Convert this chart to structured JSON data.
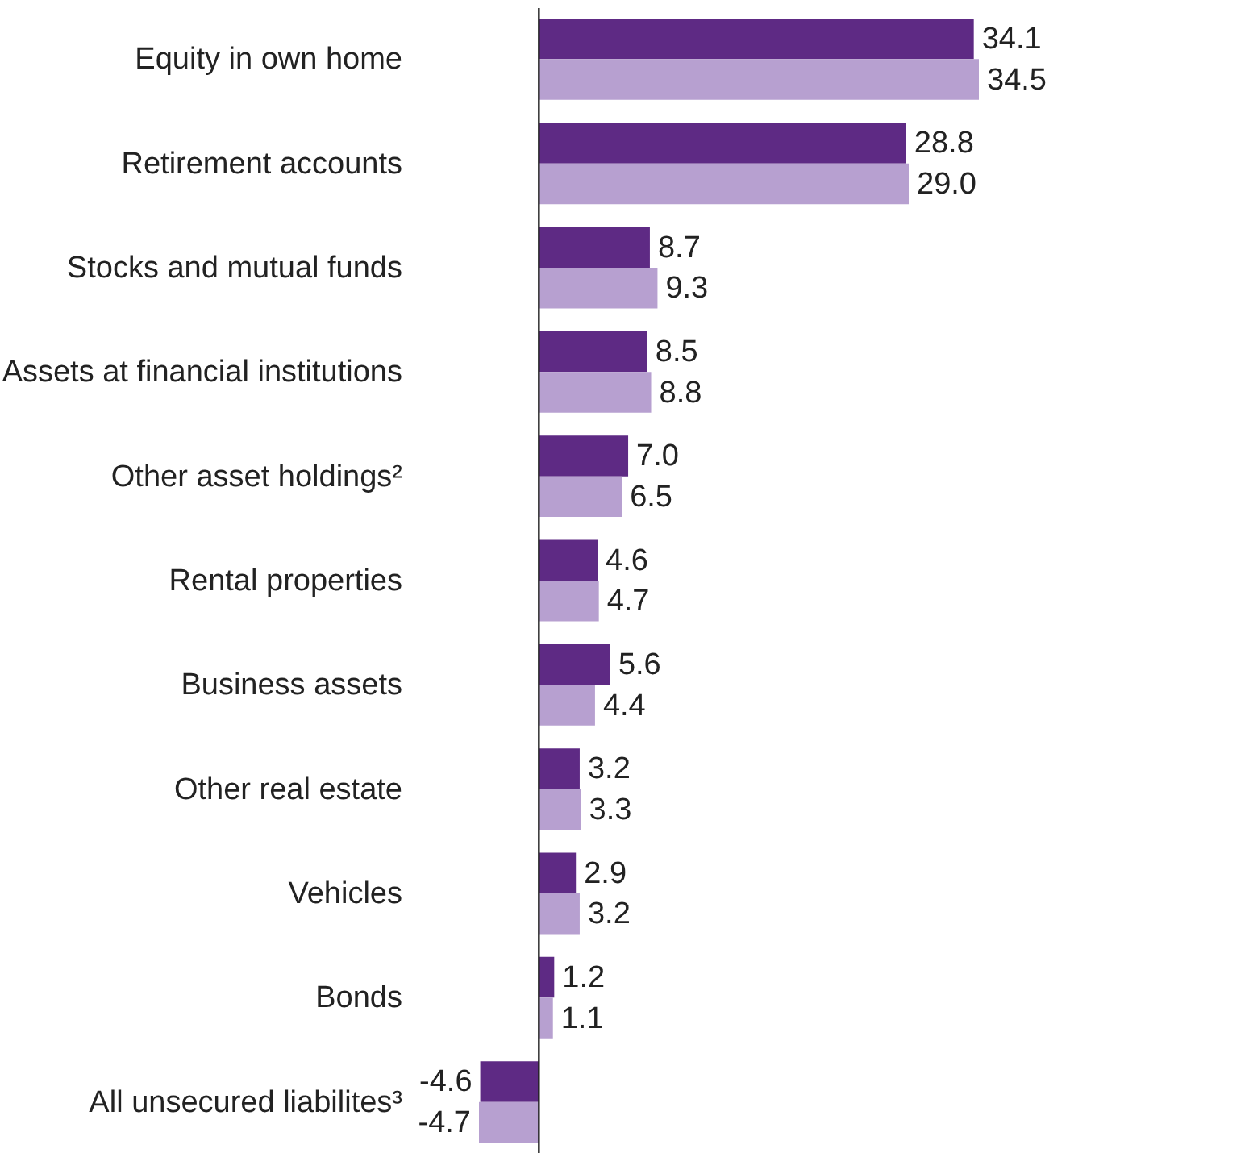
{
  "chart_data": {
    "type": "bar",
    "orientation": "horizontal",
    "categories": [
      "Equity in own home",
      "Retirement accounts",
      "Stocks and mutual funds",
      "Assets at financial institutions",
      "Other asset holdings²",
      "Rental properties",
      "Business assets",
      "Other real estate",
      "Vehicles",
      "Bonds",
      "All unsecured liabilites³"
    ],
    "series": [
      {
        "color": "#5e2a84",
        "values": [
          34.1,
          28.8,
          8.7,
          8.5,
          7.0,
          4.6,
          5.6,
          3.2,
          2.9,
          1.2,
          -4.6
        ],
        "value_labels": [
          "34.1",
          "28.8",
          "8.7",
          "8.5",
          "7.0",
          "4.6",
          "5.6",
          "3.2",
          "2.9",
          "1.2",
          "-4.6"
        ]
      },
      {
        "color": "#b7a0d0",
        "values": [
          34.5,
          29.0,
          9.3,
          8.8,
          6.5,
          4.7,
          4.4,
          3.3,
          3.2,
          1.1,
          -4.7
        ],
        "value_labels": [
          "34.5",
          "29.0",
          "9.3",
          "8.8",
          "6.5",
          "4.7",
          "4.4",
          "3.3",
          "3.2",
          "1.1",
          "-4.7"
        ]
      }
    ],
    "legend": false
  }
}
